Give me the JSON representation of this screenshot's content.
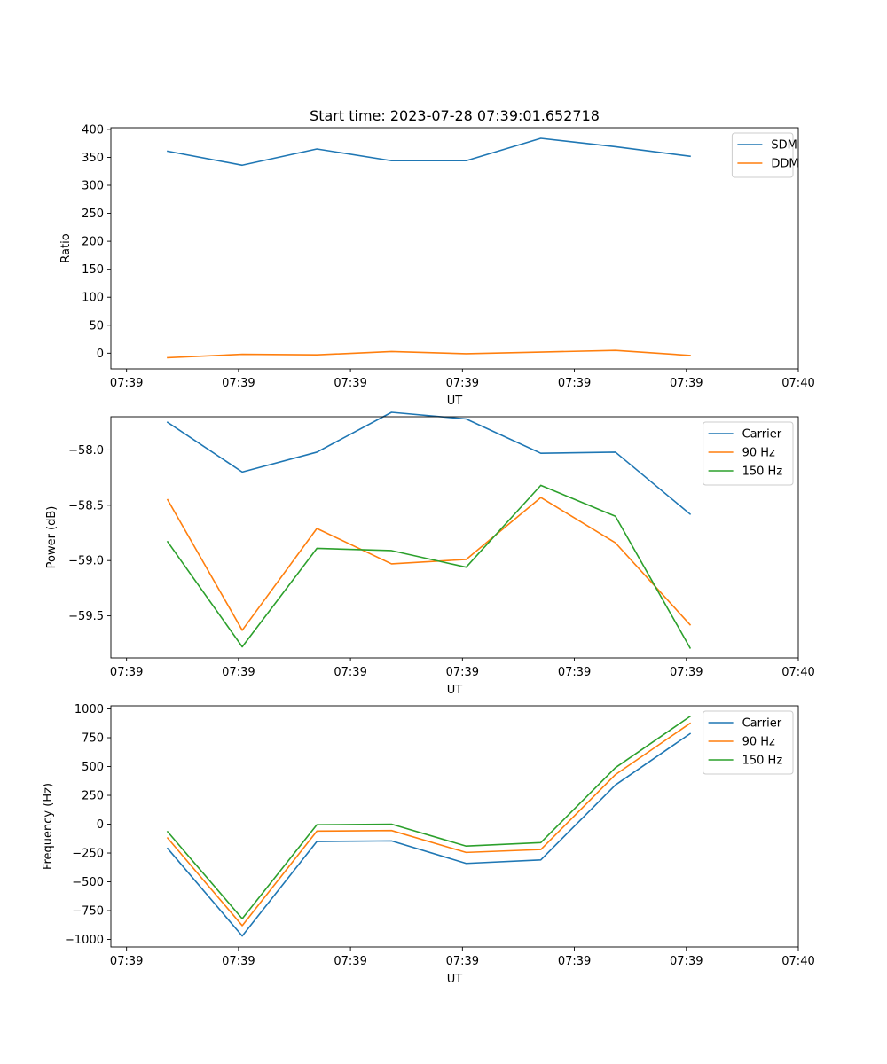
{
  "chart_data": [
    {
      "type": "line",
      "title": "Start time: 2023-07-28 07:39:01.652718",
      "xlabel": "UT",
      "ylabel": "Ratio",
      "x": [
        1,
        2,
        3,
        4,
        5,
        6,
        7,
        8
      ],
      "xlim": [
        0.24,
        9.45
      ],
      "x_ticks": [
        0.45,
        1.95,
        3.45,
        4.95,
        6.45,
        7.95,
        9.45
      ],
      "x_tick_labels": [
        "07:39",
        "07:39",
        "07:39",
        "07:39",
        "07:39",
        "07:39",
        "07:40"
      ],
      "ylim": [
        -28,
        403
      ],
      "y_ticks": [
        0,
        50,
        100,
        150,
        200,
        250,
        300,
        350,
        400
      ],
      "y_tick_labels": [
        "0",
        "50",
        "100",
        "150",
        "200",
        "250",
        "300",
        "350",
        "400"
      ],
      "legend": "top-right",
      "series": [
        {
          "name": "SDM",
          "color": "#1f77b4",
          "values": [
            361,
            336,
            365,
            344,
            344,
            384,
            369,
            352
          ]
        },
        {
          "name": "DDM",
          "color": "#ff7f0e",
          "values": [
            -8,
            -2,
            -3,
            3,
            -1,
            2,
            5,
            -4
          ]
        }
      ]
    },
    {
      "type": "line",
      "title": "",
      "xlabel": "UT",
      "ylabel": "Power (dB)",
      "x": [
        1,
        2,
        3,
        4,
        5,
        6,
        7,
        8
      ],
      "xlim": [
        0.24,
        9.45
      ],
      "x_ticks": [
        0.45,
        1.95,
        3.45,
        4.95,
        6.45,
        7.95,
        9.45
      ],
      "x_tick_labels": [
        "07:39",
        "07:39",
        "07:39",
        "07:39",
        "07:39",
        "07:39",
        "07:40"
      ],
      "ylim": [
        -59.88,
        -57.7
      ],
      "y_ticks": [
        -58.0,
        -58.5,
        -59.0,
        -59.5
      ],
      "y_tick_labels": [
        "−58.0",
        "−58.5",
        "−59.0",
        "−59.5"
      ],
      "legend": "top-right",
      "series": [
        {
          "name": "Carrier",
          "color": "#1f77b4",
          "values": [
            -57.75,
            -58.2,
            -58.02,
            -57.66,
            -57.72,
            -58.03,
            -58.02,
            -58.58
          ]
        },
        {
          "name": "90 Hz",
          "color": "#ff7f0e",
          "values": [
            -58.45,
            -59.63,
            -58.71,
            -59.03,
            -58.99,
            -58.43,
            -58.84,
            -59.58
          ]
        },
        {
          "name": "150 Hz",
          "color": "#2ca02c",
          "values": [
            -58.83,
            -59.78,
            -58.89,
            -58.91,
            -59.06,
            -58.32,
            -58.6,
            -59.79
          ]
        }
      ]
    },
    {
      "type": "line",
      "title": "",
      "xlabel": "UT",
      "ylabel": "Frequency (Hz)",
      "x": [
        1,
        2,
        3,
        4,
        5,
        6,
        7,
        8
      ],
      "xlim": [
        0.24,
        9.45
      ],
      "x_ticks": [
        0.45,
        1.95,
        3.45,
        4.95,
        6.45,
        7.95,
        9.45
      ],
      "x_tick_labels": [
        "07:39",
        "07:39",
        "07:39",
        "07:39",
        "07:39",
        "07:39",
        "07:40"
      ],
      "ylim": [
        -1065,
        1027
      ],
      "y_ticks": [
        -1000,
        -750,
        -500,
        -250,
        0,
        250,
        500,
        750,
        1000
      ],
      "y_tick_labels": [
        "−1000",
        "−750",
        "−500",
        "−250",
        "0",
        "250",
        "500",
        "750",
        "1000"
      ],
      "legend": "top-right",
      "series": [
        {
          "name": "Carrier",
          "color": "#1f77b4",
          "values": [
            -210,
            -970,
            -150,
            -145,
            -340,
            -310,
            340,
            785
          ]
        },
        {
          "name": "90 Hz",
          "color": "#ff7f0e",
          "values": [
            -120,
            -880,
            -60,
            -55,
            -245,
            -220,
            430,
            875
          ]
        },
        {
          "name": "150 Hz",
          "color": "#2ca02c",
          "values": [
            -65,
            -820,
            -5,
            0,
            -190,
            -160,
            490,
            935
          ]
        }
      ]
    }
  ]
}
